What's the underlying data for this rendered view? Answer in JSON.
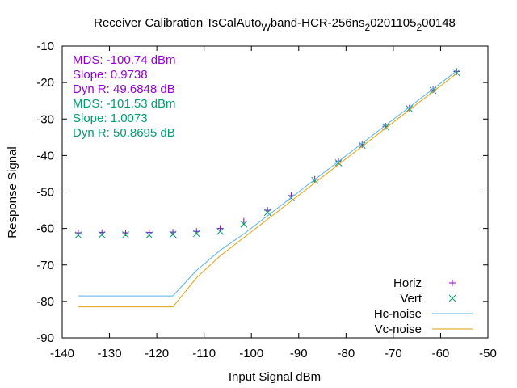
{
  "chart_data": {
    "type": "scatter",
    "title": "Receiver Calibration TsCalAuto",
    "title_parts": [
      {
        "text": "Receiver Calibration TsCalAuto",
        "sub": false
      },
      {
        "text": "W",
        "sub": true
      },
      {
        "text": "band-HCR-256ns",
        "sub": false
      },
      {
        "text": "2",
        "sub": true
      },
      {
        "text": "0201105",
        "sub": false
      },
      {
        "text": "2",
        "sub": true
      },
      {
        "text": "00148",
        "sub": false
      }
    ],
    "xlabel": "Input Signal dBm",
    "ylabel": "Response Signal",
    "xlim": [
      -140,
      -50
    ],
    "ylim": [
      -90,
      -10
    ],
    "xticks": [
      -140,
      -130,
      -120,
      -110,
      -100,
      -90,
      -80,
      -70,
      -60,
      -50
    ],
    "yticks": [
      -90,
      -80,
      -70,
      -60,
      -50,
      -40,
      -30,
      -20,
      -10
    ],
    "grid": false,
    "legend_position": "bottom-right",
    "annotations": [
      {
        "text": "MDS: -100.74 dBm",
        "color": "#9400d3"
      },
      {
        "text": "Slope: 0.9738",
        "color": "#9400d3"
      },
      {
        "text": "Dyn R: 49.6848 dB",
        "color": "#9400d3"
      },
      {
        "text": "MDS: -101.53 dBm",
        "color": "#009e73"
      },
      {
        "text": "Slope: 1.0073",
        "color": "#009e73"
      },
      {
        "text": "Dyn R: 50.8695 dB",
        "color": "#009e73"
      }
    ],
    "series": [
      {
        "name": "Horiz",
        "style": "points",
        "marker": "plus",
        "color": "#9400d3",
        "x": [
          -136.6,
          -131.6,
          -126.6,
          -121.6,
          -116.6,
          -111.6,
          -106.6,
          -101.6,
          -96.6,
          -91.6,
          -86.6,
          -81.6,
          -76.6,
          -71.6,
          -66.6,
          -61.6,
          -56.6
        ],
        "y": [
          -61.2,
          -61.1,
          -61.2,
          -61.1,
          -61.0,
          -60.8,
          -60.0,
          -58.0,
          -55.0,
          -51.0,
          -46.5,
          -41.7,
          -37.0,
          -32.0,
          -27.0,
          -22.0,
          -17.0
        ]
      },
      {
        "name": "Vert",
        "style": "points",
        "marker": "cross",
        "color": "#009e73",
        "x": [
          -136.6,
          -131.6,
          -126.6,
          -121.6,
          -116.6,
          -111.6,
          -106.6,
          -101.6,
          -96.6,
          -91.6,
          -86.6,
          -81.6,
          -76.6,
          -71.6,
          -66.6,
          -61.6,
          -56.6
        ],
        "y": [
          -61.8,
          -61.7,
          -61.7,
          -61.8,
          -61.6,
          -61.4,
          -60.8,
          -58.8,
          -55.6,
          -51.6,
          -46.8,
          -42.0,
          -37.2,
          -32.2,
          -27.2,
          -22.2,
          -17.3
        ]
      },
      {
        "name": "Hc-noise",
        "style": "line",
        "color": "#56b4e9",
        "x": [
          -136.6,
          -116.6,
          -111.6,
          -106.6,
          -101.6,
          -56.6
        ],
        "y": [
          -78.5,
          -78.5,
          -71.5,
          -66.0,
          -61.5,
          -16.8
        ]
      },
      {
        "name": "Vc-noise",
        "style": "line",
        "color": "#e69f00",
        "x": [
          -136.6,
          -116.6,
          -111.6,
          -106.6,
          -101.6,
          -56.6
        ],
        "y": [
          -81.5,
          -81.5,
          -73.5,
          -67.5,
          -62.5,
          -17.5
        ]
      }
    ]
  }
}
